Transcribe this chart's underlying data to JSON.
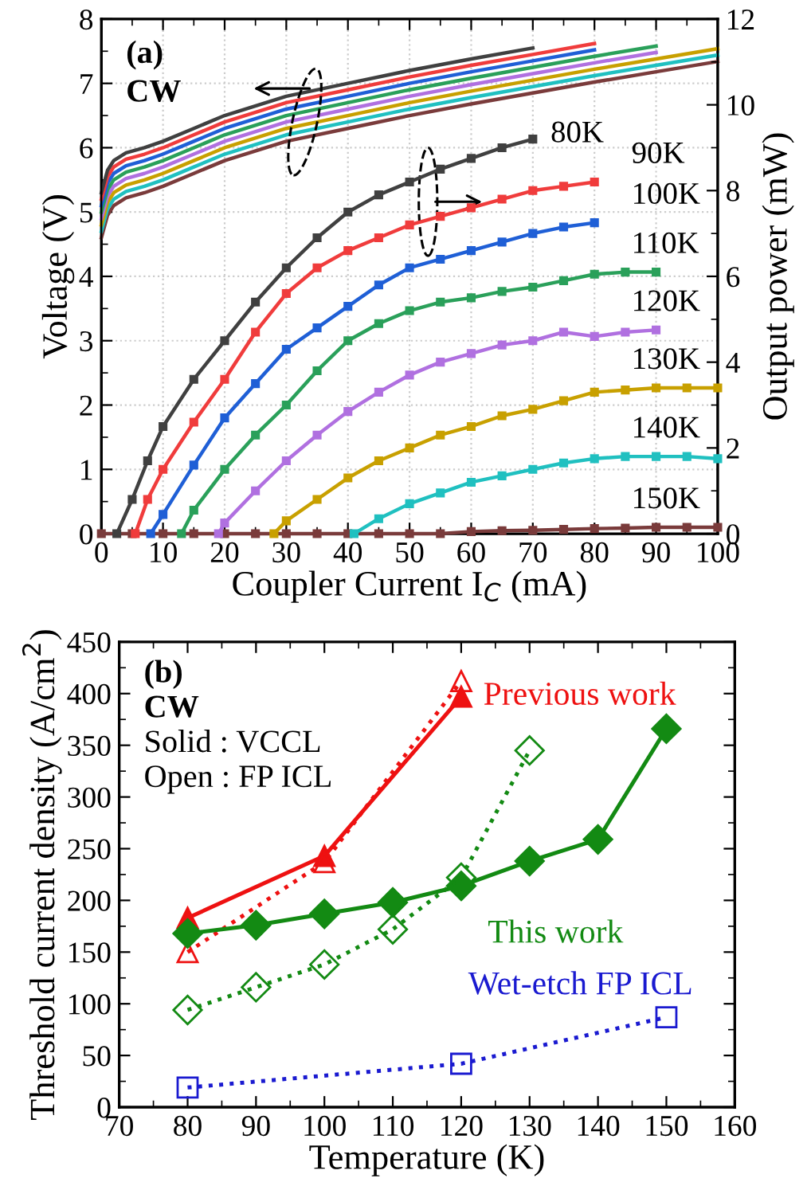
{
  "chart_data": [
    {
      "type": "line",
      "xlabel": "Coupler Current I$_{C}$ (mA)",
      "ylabel": "Voltage (V)",
      "y2label": "Output power (mW)",
      "xlim": [
        0,
        100
      ],
      "xticks": [
        0,
        10,
        20,
        30,
        40,
        50,
        60,
        70,
        80,
        90,
        100
      ],
      "ylim": [
        0,
        8
      ],
      "yticks": [
        0,
        1,
        2,
        3,
        4,
        5,
        6,
        7,
        8
      ],
      "y2lim": [
        0,
        12
      ],
      "y2ticks": [
        0,
        2,
        4,
        6,
        8,
        10,
        12
      ],
      "grid": true,
      "annotations": [
        "(a)",
        "CW"
      ],
      "series": [
        {
          "color": "#404040",
          "marker": "none",
          "line_style": "solid",
          "x": [
            0,
            1,
            2,
            4,
            7,
            10,
            15,
            20,
            30,
            40,
            50,
            60,
            70
          ],
          "values": [
            5.3,
            5.65,
            5.8,
            5.92,
            6.0,
            6.1,
            6.3,
            6.5,
            6.8,
            7.0,
            7.2,
            7.38,
            7.55
          ]
        },
        {
          "color": "#f03c3c",
          "marker": "none",
          "line_style": "solid",
          "x": [
            0,
            1,
            2,
            4,
            7,
            10,
            15,
            20,
            30,
            40,
            50,
            60,
            70,
            80
          ],
          "values": [
            5.2,
            5.55,
            5.7,
            5.82,
            5.9,
            6.0,
            6.2,
            6.4,
            6.7,
            6.9,
            7.1,
            7.28,
            7.45,
            7.62
          ]
        },
        {
          "color": "#1f5fd6",
          "marker": "none",
          "line_style": "solid",
          "x": [
            0,
            1,
            2,
            4,
            7,
            10,
            15,
            20,
            30,
            40,
            50,
            60,
            70,
            80
          ],
          "values": [
            5.1,
            5.45,
            5.6,
            5.72,
            5.8,
            5.9,
            6.1,
            6.3,
            6.6,
            6.8,
            7.0,
            7.18,
            7.35,
            7.52
          ]
        },
        {
          "color": "#2aa05a",
          "marker": "none",
          "line_style": "solid",
          "x": [
            0,
            1,
            2,
            4,
            7,
            10,
            15,
            20,
            30,
            40,
            50,
            60,
            70,
            80,
            90
          ],
          "values": [
            5.0,
            5.35,
            5.5,
            5.62,
            5.7,
            5.8,
            6.0,
            6.2,
            6.5,
            6.7,
            6.9,
            7.08,
            7.25,
            7.42,
            7.58
          ]
        },
        {
          "color": "#b070e0",
          "marker": "none",
          "line_style": "solid",
          "x": [
            0,
            1,
            2,
            4,
            7,
            10,
            15,
            20,
            30,
            40,
            50,
            60,
            70,
            80,
            90
          ],
          "values": [
            4.9,
            5.25,
            5.4,
            5.52,
            5.6,
            5.7,
            5.9,
            6.1,
            6.4,
            6.6,
            6.8,
            6.98,
            7.15,
            7.32,
            7.48
          ]
        },
        {
          "color": "#c8a000",
          "marker": "none",
          "line_style": "solid",
          "x": [
            0,
            1,
            2,
            4,
            7,
            10,
            15,
            20,
            30,
            40,
            50,
            60,
            70,
            80,
            90,
            100
          ],
          "values": [
            4.8,
            5.15,
            5.3,
            5.42,
            5.5,
            5.6,
            5.8,
            6.0,
            6.3,
            6.5,
            6.7,
            6.88,
            7.05,
            7.22,
            7.38,
            7.54
          ]
        },
        {
          "color": "#20c0c0",
          "marker": "none",
          "line_style": "solid",
          "x": [
            0,
            1,
            2,
            4,
            7,
            10,
            15,
            20,
            30,
            40,
            50,
            60,
            70,
            80,
            90,
            100
          ],
          "values": [
            4.7,
            5.05,
            5.2,
            5.32,
            5.4,
            5.5,
            5.7,
            5.9,
            6.2,
            6.4,
            6.6,
            6.78,
            6.95,
            7.12,
            7.28,
            7.44
          ]
        },
        {
          "color": "#7a3b3b",
          "marker": "none",
          "line_style": "solid",
          "x": [
            0,
            1,
            2,
            4,
            7,
            10,
            15,
            20,
            30,
            40,
            50,
            60,
            70,
            80,
            90,
            100
          ],
          "values": [
            4.6,
            4.95,
            5.1,
            5.22,
            5.3,
            5.4,
            5.6,
            5.8,
            6.1,
            6.3,
            6.5,
            6.68,
            6.85,
            7.02,
            7.18,
            7.34
          ]
        },
        {
          "name": "80K",
          "axis": "y2",
          "color": "#404040",
          "marker": "square",
          "line_style": "solid",
          "x": [
            2.5,
            5,
            7.5,
            10,
            15,
            20,
            25,
            30,
            35,
            40,
            45,
            50,
            55,
            60,
            65,
            70
          ],
          "values": [
            0,
            0.8,
            1.7,
            2.5,
            3.6,
            4.5,
            5.4,
            6.2,
            6.9,
            7.5,
            7.9,
            8.2,
            8.5,
            8.75,
            9.0,
            9.2
          ]
        },
        {
          "name": "90K",
          "axis": "y2",
          "color": "#f03c3c",
          "marker": "square",
          "line_style": "solid",
          "x": [
            5.5,
            7.5,
            10,
            15,
            20,
            25,
            30,
            35,
            40,
            45,
            50,
            55,
            60,
            65,
            70,
            75,
            80
          ],
          "values": [
            0,
            0.8,
            1.5,
            2.6,
            3.6,
            4.7,
            5.6,
            6.2,
            6.6,
            6.9,
            7.2,
            7.4,
            7.6,
            7.8,
            8.0,
            8.1,
            8.2
          ]
        },
        {
          "name": "100K",
          "axis": "y2",
          "color": "#1f5fd6",
          "marker": "square",
          "line_style": "solid",
          "x": [
            8,
            10,
            15,
            20,
            25,
            30,
            35,
            40,
            45,
            50,
            55,
            60,
            65,
            70,
            75,
            80
          ],
          "values": [
            0,
            0.45,
            1.6,
            2.7,
            3.5,
            4.3,
            4.8,
            5.3,
            5.8,
            6.2,
            6.4,
            6.6,
            6.8,
            7.0,
            7.15,
            7.25
          ]
        },
        {
          "name": "110K",
          "axis": "y2",
          "color": "#2aa05a",
          "marker": "square",
          "line_style": "solid",
          "x": [
            13,
            15,
            20,
            25,
            30,
            35,
            40,
            45,
            50,
            55,
            60,
            65,
            70,
            75,
            80,
            85,
            90
          ],
          "values": [
            0,
            0.55,
            1.5,
            2.3,
            3.0,
            3.8,
            4.5,
            4.9,
            5.2,
            5.4,
            5.5,
            5.65,
            5.75,
            5.9,
            6.05,
            6.1,
            6.1
          ]
        },
        {
          "name": "120K",
          "axis": "y2",
          "color": "#b070e0",
          "marker": "square",
          "line_style": "solid",
          "x": [
            19,
            20,
            25,
            30,
            35,
            40,
            45,
            50,
            55,
            60,
            65,
            70,
            75,
            80,
            85,
            90
          ],
          "values": [
            0,
            0.25,
            1.0,
            1.7,
            2.3,
            2.85,
            3.3,
            3.7,
            4.0,
            4.2,
            4.4,
            4.5,
            4.7,
            4.6,
            4.7,
            4.75
          ]
        },
        {
          "name": "130K",
          "axis": "y2",
          "color": "#c8a000",
          "marker": "square",
          "line_style": "solid",
          "x": [
            28,
            30,
            35,
            40,
            45,
            50,
            55,
            60,
            65,
            70,
            75,
            80,
            85,
            90,
            95,
            100
          ],
          "values": [
            0,
            0.3,
            0.8,
            1.3,
            1.7,
            2.0,
            2.3,
            2.5,
            2.75,
            2.9,
            3.1,
            3.3,
            3.35,
            3.4,
            3.4,
            3.4
          ]
        },
        {
          "name": "140K",
          "axis": "y2",
          "color": "#20c0c0",
          "marker": "square",
          "line_style": "solid",
          "x": [
            41,
            45,
            50,
            55,
            60,
            65,
            70,
            75,
            80,
            85,
            90,
            95,
            100
          ],
          "values": [
            0,
            0.35,
            0.7,
            0.95,
            1.2,
            1.35,
            1.5,
            1.65,
            1.75,
            1.8,
            1.8,
            1.8,
            1.75
          ]
        },
        {
          "name": "150K",
          "axis": "y2",
          "color": "#7a3b3b",
          "marker": "square",
          "line_style": "solid",
          "x": [
            0,
            5,
            10,
            15,
            20,
            25,
            30,
            35,
            40,
            45,
            50,
            55,
            60,
            65,
            70,
            75,
            80,
            85,
            90,
            95,
            100
          ],
          "values": [
            0,
            0,
            0,
            0,
            0,
            0,
            0,
            0,
            0,
            0,
            0,
            0,
            0.05,
            0.07,
            0.08,
            0.1,
            0.12,
            0.13,
            0.15,
            0.15,
            0.15
          ]
        }
      ]
    },
    {
      "type": "line",
      "xlabel": "Temperature (K)",
      "ylabel": "Threshold current density (A/cm$^{2}$)",
      "xlim": [
        70,
        160
      ],
      "xticks": [
        70,
        80,
        90,
        100,
        110,
        120,
        130,
        140,
        150,
        160
      ],
      "ylim": [
        0,
        450
      ],
      "yticks": [
        0,
        50,
        100,
        150,
        200,
        250,
        300,
        350,
        400,
        450
      ],
      "grid": false,
      "annotations": [
        "(b)",
        "CW",
        "Solid : VCCL",
        "Open : FP ICL"
      ],
      "series": [
        {
          "name": "Previous work",
          "color": "#ee1111",
          "marker": "triangle",
          "line_style": "solid",
          "x": [
            80,
            100,
            120
          ],
          "values": [
            183,
            243,
            397
          ]
        },
        {
          "color": "#ee1111",
          "marker": "triangle",
          "line_style": "dotted",
          "x": [
            80,
            100,
            120
          ],
          "values": [
            150,
            237,
            412
          ]
        },
        {
          "name": "This work",
          "color": "#138a13",
          "marker": "diamond",
          "line_style": "solid",
          "x": [
            80,
            90,
            100,
            110,
            120,
            130,
            140,
            150
          ],
          "values": [
            168,
            176,
            187,
            198,
            214,
            238,
            259,
            366
          ]
        },
        {
          "color": "#138a13",
          "marker": "diamond",
          "line_style": "dotted",
          "x": [
            80,
            90,
            100,
            110,
            120,
            130
          ],
          "values": [
            94,
            116,
            138,
            172,
            222,
            345
          ]
        },
        {
          "name": "Wet-etch FP ICL",
          "color": "#1a1ad0",
          "marker": "square",
          "line_style": "dotted",
          "x": [
            80,
            120,
            150
          ],
          "values": [
            19,
            42,
            87
          ]
        }
      ]
    }
  ]
}
